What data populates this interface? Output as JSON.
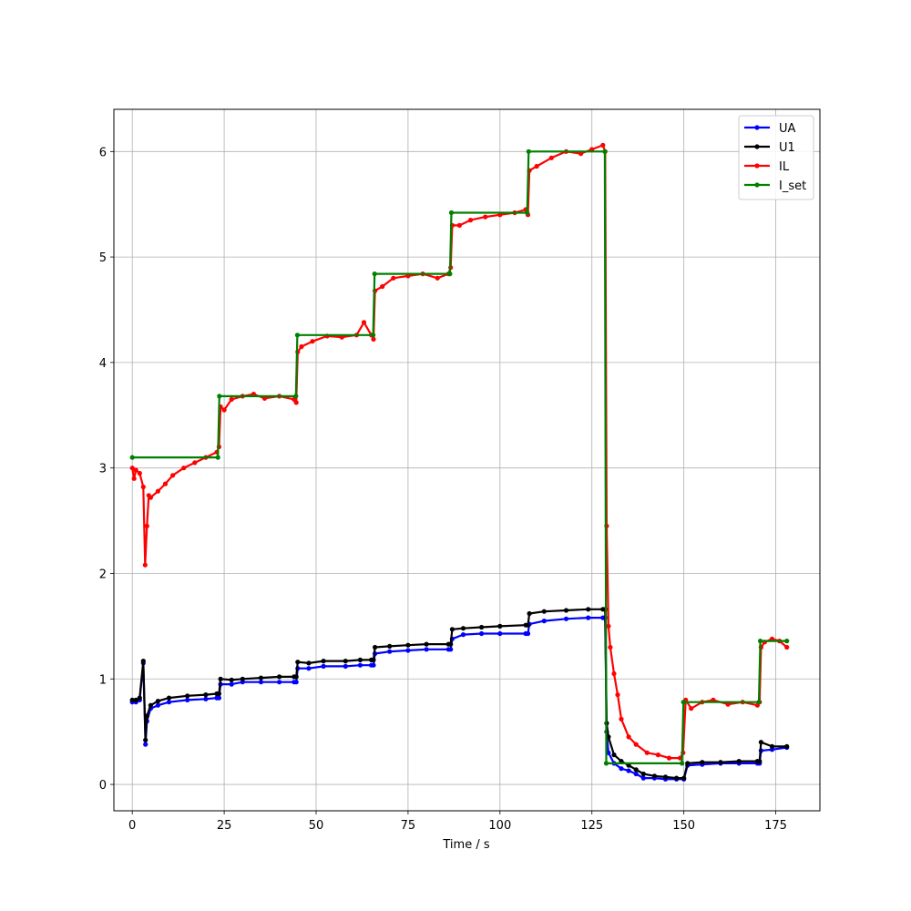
{
  "chart_data": {
    "type": "line",
    "title": "",
    "xlabel": "Time / s",
    "ylabel": "",
    "xlim": [
      -5,
      187
    ],
    "ylim": [
      -0.25,
      6.4
    ],
    "xticks": [
      0,
      25,
      50,
      75,
      100,
      125,
      150,
      175
    ],
    "yticks": [
      0,
      1,
      2,
      3,
      4,
      5,
      6
    ],
    "grid": true,
    "legend_position": "top-right",
    "series": [
      {
        "name": "UA",
        "color": "#0000ff",
        "marker": "dot",
        "points": [
          [
            0,
            0.78
          ],
          [
            1,
            0.78
          ],
          [
            2,
            0.8
          ],
          [
            3,
            1.15
          ],
          [
            3.6,
            0.38
          ],
          [
            4,
            0.6
          ],
          [
            5,
            0.72
          ],
          [
            7,
            0.75
          ],
          [
            10,
            0.78
          ],
          [
            15,
            0.8
          ],
          [
            20,
            0.81
          ],
          [
            23,
            0.82
          ],
          [
            23.6,
            0.82
          ],
          [
            24,
            0.95
          ],
          [
            27,
            0.95
          ],
          [
            30,
            0.97
          ],
          [
            35,
            0.97
          ],
          [
            40,
            0.97
          ],
          [
            44,
            0.97
          ],
          [
            44.6,
            0.97
          ],
          [
            45,
            1.1
          ],
          [
            48,
            1.1
          ],
          [
            52,
            1.12
          ],
          [
            58,
            1.12
          ],
          [
            62,
            1.13
          ],
          [
            65,
            1.13
          ],
          [
            65.6,
            1.13
          ],
          [
            66,
            1.24
          ],
          [
            70,
            1.26
          ],
          [
            75,
            1.27
          ],
          [
            80,
            1.28
          ],
          [
            86,
            1.28
          ],
          [
            86.6,
            1.28
          ],
          [
            87,
            1.38
          ],
          [
            90,
            1.42
          ],
          [
            95,
            1.43
          ],
          [
            100,
            1.43
          ],
          [
            107,
            1.43
          ],
          [
            107.6,
            1.43
          ],
          [
            108,
            1.52
          ],
          [
            112,
            1.55
          ],
          [
            118,
            1.57
          ],
          [
            124,
            1.58
          ],
          [
            128,
            1.58
          ],
          [
            128.6,
            1.58
          ],
          [
            129,
            0.5
          ],
          [
            129.5,
            0.3
          ],
          [
            131,
            0.2
          ],
          [
            133,
            0.15
          ],
          [
            135,
            0.13
          ],
          [
            137,
            0.1
          ],
          [
            139,
            0.06
          ],
          [
            142,
            0.06
          ],
          [
            145,
            0.05
          ],
          [
            148,
            0.05
          ],
          [
            150,
            0.05
          ],
          [
            151,
            0.18
          ],
          [
            155,
            0.19
          ],
          [
            160,
            0.2
          ],
          [
            165,
            0.2
          ],
          [
            170,
            0.2
          ],
          [
            170.6,
            0.2
          ],
          [
            171,
            0.32
          ],
          [
            174,
            0.33
          ],
          [
            178,
            0.35
          ]
        ]
      },
      {
        "name": "U1",
        "color": "#000000",
        "marker": "dot",
        "points": [
          [
            0,
            0.8
          ],
          [
            1,
            0.8
          ],
          [
            2,
            0.82
          ],
          [
            3,
            1.17
          ],
          [
            3.6,
            0.42
          ],
          [
            4,
            0.65
          ],
          [
            5,
            0.75
          ],
          [
            7,
            0.79
          ],
          [
            10,
            0.82
          ],
          [
            15,
            0.84
          ],
          [
            20,
            0.85
          ],
          [
            23,
            0.86
          ],
          [
            23.6,
            0.86
          ],
          [
            24,
            1.0
          ],
          [
            27,
            0.99
          ],
          [
            30,
            1.0
          ],
          [
            35,
            1.01
          ],
          [
            40,
            1.02
          ],
          [
            44,
            1.02
          ],
          [
            44.6,
            1.02
          ],
          [
            45,
            1.16
          ],
          [
            48,
            1.15
          ],
          [
            52,
            1.17
          ],
          [
            58,
            1.17
          ],
          [
            62,
            1.18
          ],
          [
            65,
            1.18
          ],
          [
            65.6,
            1.18
          ],
          [
            66,
            1.3
          ],
          [
            70,
            1.31
          ],
          [
            75,
            1.32
          ],
          [
            80,
            1.33
          ],
          [
            86,
            1.33
          ],
          [
            86.6,
            1.33
          ],
          [
            87,
            1.47
          ],
          [
            90,
            1.48
          ],
          [
            95,
            1.49
          ],
          [
            100,
            1.5
          ],
          [
            107,
            1.51
          ],
          [
            107.6,
            1.51
          ],
          [
            108,
            1.62
          ],
          [
            112,
            1.64
          ],
          [
            118,
            1.65
          ],
          [
            124,
            1.66
          ],
          [
            128,
            1.66
          ],
          [
            128.6,
            1.66
          ],
          [
            129,
            0.58
          ],
          [
            129.5,
            0.45
          ],
          [
            131,
            0.28
          ],
          [
            133,
            0.22
          ],
          [
            135,
            0.18
          ],
          [
            137,
            0.14
          ],
          [
            139,
            0.1
          ],
          [
            142,
            0.08
          ],
          [
            145,
            0.07
          ],
          [
            148,
            0.06
          ],
          [
            150,
            0.06
          ],
          [
            151,
            0.2
          ],
          [
            155,
            0.21
          ],
          [
            160,
            0.21
          ],
          [
            165,
            0.22
          ],
          [
            170,
            0.22
          ],
          [
            170.6,
            0.22
          ],
          [
            171,
            0.4
          ],
          [
            174,
            0.36
          ],
          [
            178,
            0.36
          ]
        ]
      },
      {
        "name": "IL",
        "color": "#ff0000",
        "marker": "dot",
        "points": [
          [
            0,
            3.0
          ],
          [
            0.5,
            2.9
          ],
          [
            1,
            2.98
          ],
          [
            2,
            2.95
          ],
          [
            3,
            2.82
          ],
          [
            3.5,
            2.08
          ],
          [
            4,
            2.45
          ],
          [
            4.5,
            2.74
          ],
          [
            5,
            2.72
          ],
          [
            7,
            2.78
          ],
          [
            9,
            2.85
          ],
          [
            11,
            2.93
          ],
          [
            14,
            3.0
          ],
          [
            17,
            3.05
          ],
          [
            20,
            3.1
          ],
          [
            23,
            3.15
          ],
          [
            23.6,
            3.2
          ],
          [
            24,
            3.58
          ],
          [
            25,
            3.55
          ],
          [
            27,
            3.65
          ],
          [
            30,
            3.68
          ],
          [
            33,
            3.7
          ],
          [
            36,
            3.66
          ],
          [
            40,
            3.68
          ],
          [
            44,
            3.65
          ],
          [
            44.6,
            3.62
          ],
          [
            45,
            4.1
          ],
          [
            46,
            4.15
          ],
          [
            49,
            4.2
          ],
          [
            53,
            4.25
          ],
          [
            57,
            4.24
          ],
          [
            61,
            4.26
          ],
          [
            63,
            4.38
          ],
          [
            65,
            4.26
          ],
          [
            65.6,
            4.22
          ],
          [
            66,
            4.68
          ],
          [
            68,
            4.72
          ],
          [
            71,
            4.8
          ],
          [
            75,
            4.82
          ],
          [
            79,
            4.84
          ],
          [
            83,
            4.8
          ],
          [
            86,
            4.84
          ],
          [
            86.6,
            4.9
          ],
          [
            87,
            5.3
          ],
          [
            89,
            5.3
          ],
          [
            92,
            5.35
          ],
          [
            96,
            5.38
          ],
          [
            100,
            5.4
          ],
          [
            104,
            5.42
          ],
          [
            107,
            5.45
          ],
          [
            107.6,
            5.4
          ],
          [
            108,
            5.82
          ],
          [
            110,
            5.86
          ],
          [
            114,
            5.94
          ],
          [
            118,
            6.0
          ],
          [
            122,
            5.98
          ],
          [
            125,
            6.02
          ],
          [
            128,
            6.06
          ],
          [
            128.6,
            6.0
          ],
          [
            129,
            2.45
          ],
          [
            129.5,
            1.5
          ],
          [
            130,
            1.3
          ],
          [
            131,
            1.05
          ],
          [
            132,
            0.85
          ],
          [
            133,
            0.62
          ],
          [
            135,
            0.45
          ],
          [
            137,
            0.38
          ],
          [
            140,
            0.3
          ],
          [
            143,
            0.28
          ],
          [
            146,
            0.25
          ],
          [
            149,
            0.25
          ],
          [
            149.8,
            0.3
          ],
          [
            150.5,
            0.8
          ],
          [
            152,
            0.72
          ],
          [
            155,
            0.78
          ],
          [
            158,
            0.8
          ],
          [
            162,
            0.76
          ],
          [
            166,
            0.78
          ],
          [
            170,
            0.75
          ],
          [
            170.6,
            0.78
          ],
          [
            171,
            1.3
          ],
          [
            172,
            1.35
          ],
          [
            174,
            1.38
          ],
          [
            176,
            1.36
          ],
          [
            178,
            1.3
          ]
        ]
      },
      {
        "name": "I_set",
        "color": "#008000",
        "marker": "dot",
        "points": [
          [
            0,
            3.1
          ],
          [
            23.3,
            3.1
          ],
          [
            23.7,
            3.68
          ],
          [
            44.5,
            3.68
          ],
          [
            44.9,
            4.26
          ],
          [
            65.5,
            4.26
          ],
          [
            65.9,
            4.84
          ],
          [
            86.4,
            4.84
          ],
          [
            86.8,
            5.42
          ],
          [
            107.4,
            5.42
          ],
          [
            107.8,
            6.0
          ],
          [
            128.5,
            6.0
          ],
          [
            128.9,
            0.2
          ],
          [
            149.5,
            0.2
          ],
          [
            149.9,
            0.78
          ],
          [
            170.4,
            0.78
          ],
          [
            170.8,
            1.36
          ],
          [
            178,
            1.36
          ]
        ]
      }
    ]
  }
}
